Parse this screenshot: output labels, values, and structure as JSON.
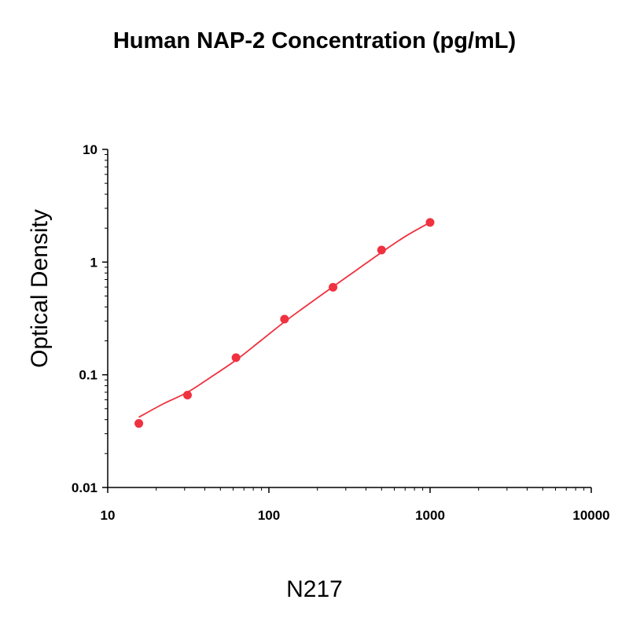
{
  "chart_data": {
    "type": "scatter",
    "title": "Human NAP-2 Concentration (pg/mL)",
    "xlabel": "",
    "ylabel": "Optical Density",
    "footer": "N217",
    "x_scale": "log",
    "y_scale": "log",
    "xlim": [
      10,
      10000
    ],
    "ylim": [
      0.01,
      10
    ],
    "x_ticks": [
      "10",
      "100",
      "1000",
      "10000"
    ],
    "y_ticks": [
      "0.01",
      "0.1",
      "1",
      "10"
    ],
    "grid": false,
    "series": [
      {
        "color": "#f0313f",
        "points": [
          {
            "x": 15.6,
            "y": 0.037
          },
          {
            "x": 31.25,
            "y": 0.066
          },
          {
            "x": 62.5,
            "y": 0.142
          },
          {
            "x": 125,
            "y": 0.312
          },
          {
            "x": 250,
            "y": 0.598
          },
          {
            "x": 500,
            "y": 1.28
          },
          {
            "x": 1000,
            "y": 2.25
          }
        ]
      }
    ],
    "fit_curve": [
      {
        "x": 15.6,
        "y": 0.042
      },
      {
        "x": 22,
        "y": 0.055
      },
      {
        "x": 31.25,
        "y": 0.07
      },
      {
        "x": 44,
        "y": 0.096
      },
      {
        "x": 62.5,
        "y": 0.135
      },
      {
        "x": 88,
        "y": 0.198
      },
      {
        "x": 125,
        "y": 0.295
      },
      {
        "x": 177,
        "y": 0.425
      },
      {
        "x": 250,
        "y": 0.605
      },
      {
        "x": 354,
        "y": 0.86
      },
      {
        "x": 500,
        "y": 1.22
      },
      {
        "x": 707,
        "y": 1.7
      },
      {
        "x": 1000,
        "y": 2.25
      }
    ]
  }
}
